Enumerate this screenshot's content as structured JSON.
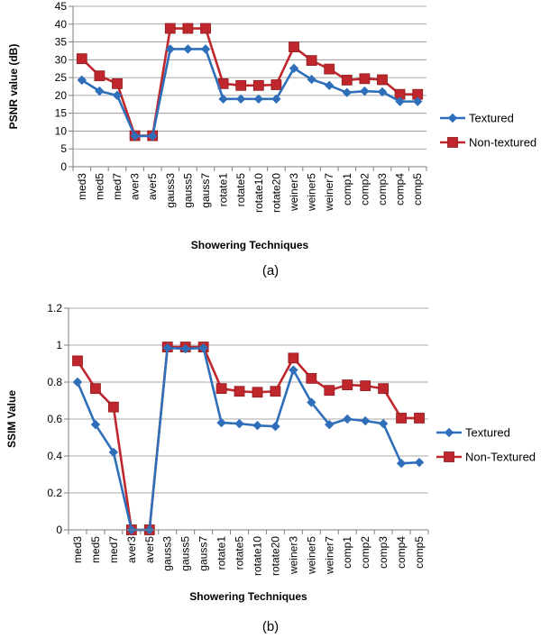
{
  "chart_data": [
    {
      "type": "line",
      "panel_label": "(a)",
      "title": "",
      "xlabel": "Showering Techniques",
      "ylabel": "PSNR value (dB)",
      "ylim": [
        0,
        45
      ],
      "yticks": [
        "0",
        "5",
        "10",
        "15",
        "20",
        "25",
        "30",
        "35",
        "40",
        "45"
      ],
      "grid": "horizontal",
      "legend_position": "right",
      "categories": [
        "med3",
        "med5",
        "med7",
        "aver3",
        "aver5",
        "gauss3",
        "gauss5",
        "gauss7",
        "rotate1",
        "rotate5",
        "rotate10",
        "rotate20",
        "weiner3",
        "weiner5",
        "weiner7",
        "comp1",
        "comp2",
        "comp3",
        "comp4",
        "comp5"
      ],
      "series": [
        {
          "name": "Textured",
          "color": "#2f6fba",
          "marker": "diamond",
          "values": [
            24.3,
            21.2,
            20.0,
            8.6,
            8.6,
            33.0,
            33.0,
            33.0,
            19.0,
            19.0,
            19.0,
            19.0,
            27.6,
            24.5,
            22.8,
            20.8,
            21.2,
            21.0,
            18.3,
            18.3
          ]
        },
        {
          "name": "Non-textured",
          "color": "#c0272d",
          "marker": "square",
          "values": [
            30.3,
            25.5,
            23.3,
            8.7,
            8.7,
            38.8,
            38.8,
            38.8,
            23.3,
            22.8,
            22.8,
            23.0,
            33.6,
            29.8,
            27.4,
            24.3,
            24.7,
            24.4,
            20.3,
            20.3
          ]
        }
      ]
    },
    {
      "type": "line",
      "panel_label": "(b)",
      "title": "",
      "xlabel": "Showering Techniques",
      "ylabel": "SSIM Value",
      "ylim": [
        0,
        1.2
      ],
      "yticks": [
        "0",
        "0.2",
        "0.4",
        "0.6",
        "0.8",
        "1",
        "1.2"
      ],
      "grid": "horizontal",
      "legend_position": "right",
      "categories": [
        "med3",
        "med5",
        "med7",
        "aver3",
        "aver5",
        "gauss3",
        "gauss5",
        "gauss7",
        "rotate1",
        "rotate5",
        "rotate10",
        "rotate20",
        "weiner3",
        "weiner5",
        "weiner7",
        "comp1",
        "comp2",
        "comp3",
        "comp4",
        "comp5"
      ],
      "series": [
        {
          "name": "Textured",
          "color": "#2f6fba",
          "marker": "diamond",
          "values": [
            0.8,
            0.57,
            0.42,
            0.0,
            0.0,
            0.985,
            0.98,
            0.985,
            0.58,
            0.575,
            0.565,
            0.56,
            0.865,
            0.69,
            0.57,
            0.6,
            0.59,
            0.575,
            0.36,
            0.365
          ]
        },
        {
          "name": "Non-Textured",
          "color": "#c0272d",
          "marker": "square",
          "values": [
            0.915,
            0.765,
            0.665,
            0.0,
            0.0,
            0.99,
            0.99,
            0.99,
            0.765,
            0.75,
            0.745,
            0.75,
            0.93,
            0.82,
            0.755,
            0.785,
            0.78,
            0.765,
            0.605,
            0.605
          ]
        }
      ]
    }
  ]
}
